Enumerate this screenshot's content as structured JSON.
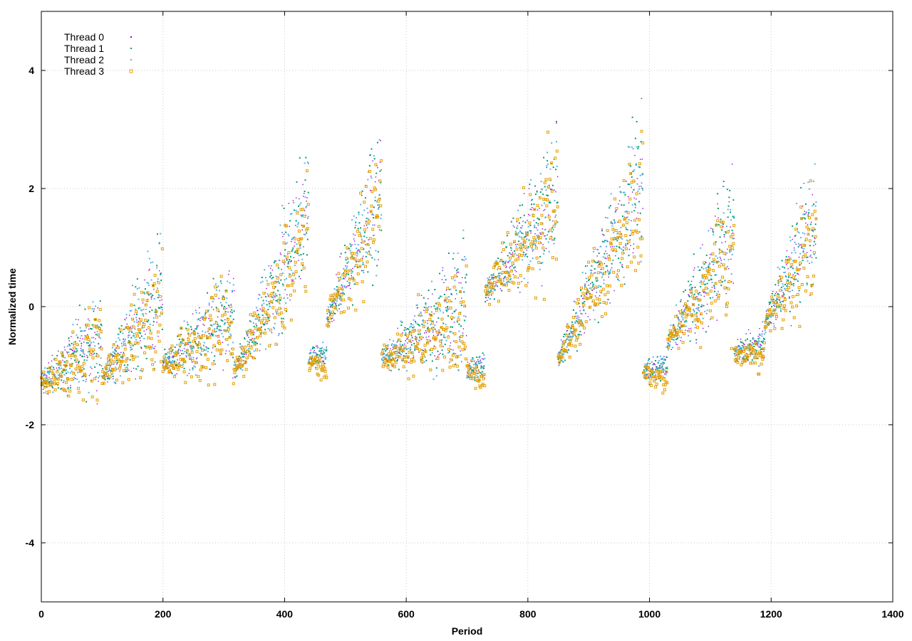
{
  "chart_data": {
    "type": "scatter",
    "title": "",
    "xlabel": "Period",
    "ylabel": "Normalized time",
    "xlim": [
      0,
      1400
    ],
    "ylim": [
      -5,
      5
    ],
    "xticks": [
      0,
      200,
      400,
      600,
      800,
      1000,
      1200,
      1400
    ],
    "yticks": [
      -4,
      -2,
      0,
      2,
      4
    ],
    "x_tick_labels": [
      "0",
      "200",
      "400",
      "600",
      "800",
      "1000",
      "1200",
      "1400"
    ],
    "y_tick_labels": [
      "-4",
      "-2",
      "0",
      "2",
      "4"
    ],
    "grid": true,
    "legend_position": "top-left",
    "marker": "dots",
    "series": [
      {
        "name": "Thread 0",
        "color": "#9400d3",
        "marker": "dot"
      },
      {
        "name": "Thread 1",
        "color": "#009e73",
        "marker": "small-square"
      },
      {
        "name": "Thread 2",
        "color": "#56b4e9",
        "marker": "small-square"
      },
      {
        "name": "Thread 3",
        "color": "#e69f00",
        "marker": "square"
      }
    ],
    "cycles": [
      {
        "x0": 0,
        "x1": 100,
        "y0": -1.3,
        "y1": -0.5
      },
      {
        "x0": 100,
        "x1": 200,
        "y0": -1.2,
        "y1": 0.3
      },
      {
        "x0": 200,
        "x1": 318,
        "y0": -1.0,
        "y1": -0.1
      },
      {
        "x0": 318,
        "x1": 440,
        "y0": -1.1,
        "y1": 1.5
      },
      {
        "x0": 440,
        "x1": 470,
        "y0": -0.9,
        "y1": -0.8
      },
      {
        "x0": 470,
        "x1": 560,
        "y0": -0.2,
        "y1": 2.0
      },
      {
        "x0": 560,
        "x1": 700,
        "y0": -0.9,
        "y1": 0.1
      },
      {
        "x0": 700,
        "x1": 730,
        "y0": -1.1,
        "y1": -1.0
      },
      {
        "x0": 730,
        "x1": 850,
        "y0": 0.2,
        "y1": 2.0
      },
      {
        "x0": 850,
        "x1": 990,
        "y0": -0.9,
        "y1": 2.2
      },
      {
        "x0": 990,
        "x1": 1030,
        "y0": -1.1,
        "y1": -1.0
      },
      {
        "x0": 1030,
        "x1": 1140,
        "y0": -0.6,
        "y1": 1.3
      },
      {
        "x0": 1140,
        "x1": 1190,
        "y0": -0.8,
        "y1": -0.6
      },
      {
        "x0": 1190,
        "x1": 1275,
        "y0": -0.3,
        "y1": 1.5
      }
    ],
    "points_per_series_approx": 1275
  }
}
